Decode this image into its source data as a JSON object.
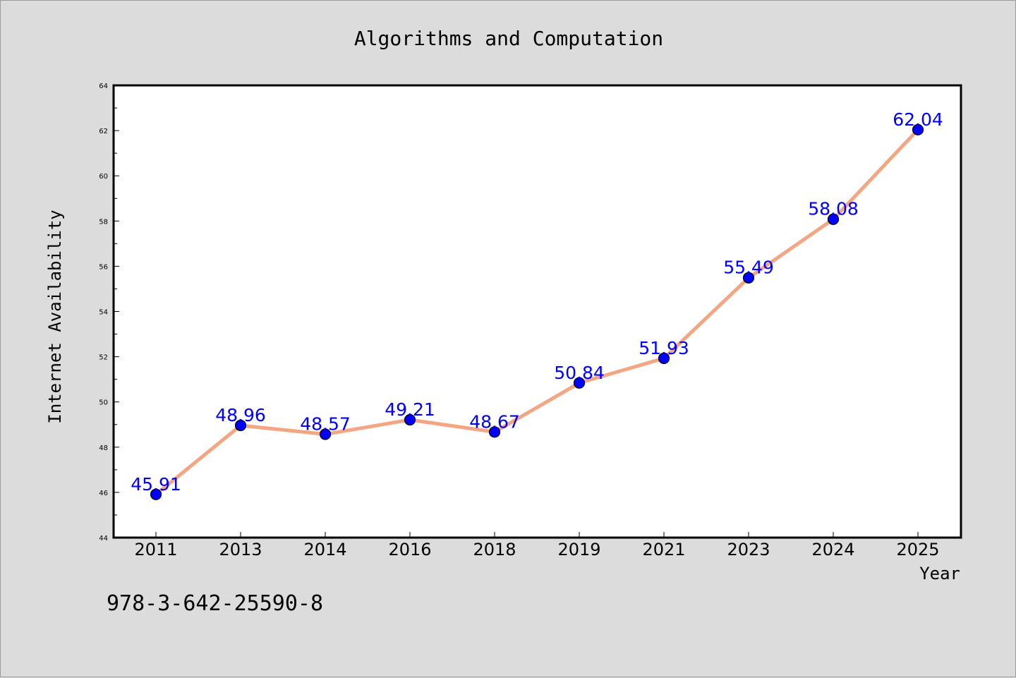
{
  "footer": {
    "isbn": "978-3-642-25590-8"
  },
  "colors": {
    "background": "#dcdcdc",
    "plot_area": "#ffffff",
    "line": "#f4a582",
    "marker": "#0000ff",
    "label": "#0000ff"
  },
  "chart_data": {
    "type": "line",
    "title": "Algorithms and Computation",
    "xlabel": "Year",
    "ylabel": "Internet Availability",
    "categories": [
      "2011",
      "2013",
      "2014",
      "2016",
      "2018",
      "2019",
      "2021",
      "2023",
      "2024",
      "2025"
    ],
    "series": [
      {
        "values": [
          45.91,
          48.96,
          48.57,
          49.21,
          48.67,
          50.84,
          51.93,
          55.49,
          58.08,
          62.04
        ]
      }
    ],
    "data_labels": [
      "45.91",
      "48.96",
      "48.57",
      "49.21",
      "48.67",
      "50.84",
      "51.93",
      "55.49",
      "58.08",
      "62.04"
    ],
    "ylim": [
      44,
      64
    ],
    "yticks": [
      44,
      46,
      48,
      50,
      52,
      54,
      56,
      58,
      60,
      62,
      64
    ],
    "grid": false,
    "legend": "none"
  }
}
